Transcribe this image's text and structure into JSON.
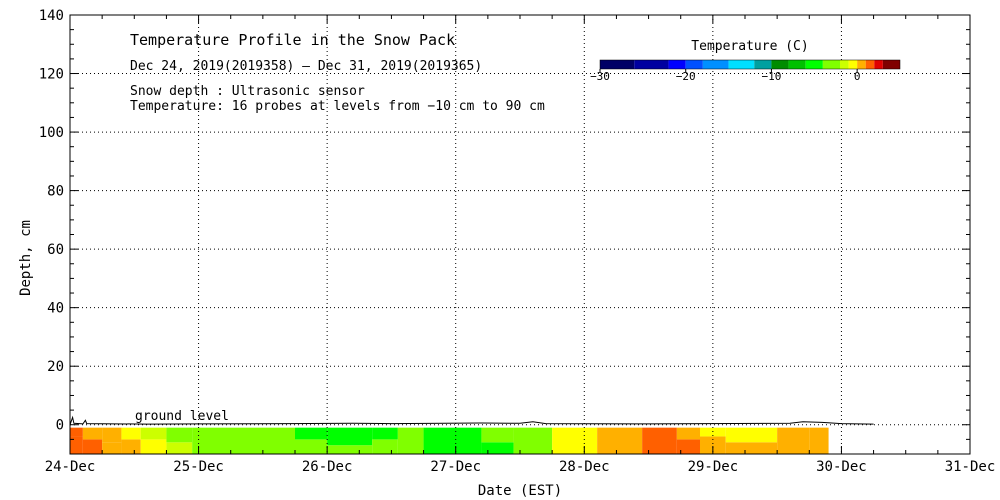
{
  "chart_data": {
    "type": "heatmap",
    "title": "Temperature Profile in the Snow Pack",
    "date_range": "Dec 24, 2019(2019358) – Dec 31, 2019(2019365)",
    "info_lines": [
      "Snow depth : Ultrasonic sensor",
      "Temperature: 16 probes at levels from −10 cm to 90 cm"
    ],
    "xlabel": "Date (EST)",
    "ylabel": "Depth, cm",
    "x_ticks": [
      "24-Dec",
      "25-Dec",
      "26-Dec",
      "27-Dec",
      "28-Dec",
      "29-Dec",
      "30-Dec",
      "31-Dec"
    ],
    "y_ticks": [
      0,
      20,
      40,
      60,
      80,
      100,
      120,
      140
    ],
    "xlim_days": [
      0,
      7
    ],
    "ylim": [
      -10,
      140
    ],
    "grid": true,
    "annotation": "ground level",
    "legend": {
      "title": "Temperature (C)",
      "placement": "top-right",
      "tick_labels": [
        "−30",
        "−20",
        "−10",
        "0"
      ],
      "tick_values": [
        -30,
        -20,
        -10,
        0
      ],
      "range": [
        -30,
        5
      ],
      "bands": [
        {
          "from": -30,
          "to": -26,
          "color": "#000066"
        },
        {
          "from": -26,
          "to": -22,
          "color": "#0000a0"
        },
        {
          "from": -22,
          "to": -20,
          "color": "#0000ff"
        },
        {
          "from": -20,
          "to": -18,
          "color": "#0050ff"
        },
        {
          "from": -18,
          "to": -15,
          "color": "#0090ff"
        },
        {
          "from": -15,
          "to": -12,
          "color": "#00e0ff"
        },
        {
          "from": -12,
          "to": -10,
          "color": "#00a0a0"
        },
        {
          "from": -10,
          "to": -8,
          "color": "#008c00"
        },
        {
          "from": -8,
          "to": -6,
          "color": "#00c000"
        },
        {
          "from": -6,
          "to": -4,
          "color": "#00ff00"
        },
        {
          "from": -4,
          "to": -2,
          "color": "#80ff00"
        },
        {
          "from": -2,
          "to": -1,
          "color": "#ccff00"
        },
        {
          "from": -1,
          "to": 0,
          "color": "#ffff00"
        },
        {
          "from": 0,
          "to": 1,
          "color": "#ffb000"
        },
        {
          "from": 1,
          "to": 2,
          "color": "#ff6000"
        },
        {
          "from": 2,
          "to": 3,
          "color": "#e00000"
        },
        {
          "from": 3,
          "to": 5,
          "color": "#800000"
        }
      ]
    },
    "heatmap_columns": [
      {
        "x0": 0.0,
        "x1": 0.1,
        "layers": [
          {
            "d0": -10,
            "d1": -4,
            "color": "#ff6000"
          },
          {
            "d0": -4,
            "d1": -1,
            "color": "#ff6000"
          }
        ]
      },
      {
        "x0": 0.1,
        "x1": 0.25,
        "layers": [
          {
            "d0": -10,
            "d1": -5,
            "color": "#ff6000"
          },
          {
            "d0": -5,
            "d1": -1,
            "color": "#ffb000"
          }
        ]
      },
      {
        "x0": 0.25,
        "x1": 0.4,
        "layers": [
          {
            "d0": -10,
            "d1": -6,
            "color": "#ffb000"
          },
          {
            "d0": -6,
            "d1": -1,
            "color": "#ffb000"
          }
        ]
      },
      {
        "x0": 0.4,
        "x1": 0.55,
        "layers": [
          {
            "d0": -10,
            "d1": -5,
            "color": "#ffb000"
          },
          {
            "d0": -5,
            "d1": -1,
            "color": "#ffff00"
          }
        ]
      },
      {
        "x0": 0.55,
        "x1": 0.75,
        "layers": [
          {
            "d0": -10,
            "d1": -5,
            "color": "#ffff00"
          },
          {
            "d0": -5,
            "d1": -1,
            "color": "#ccff00"
          }
        ]
      },
      {
        "x0": 0.75,
        "x1": 0.95,
        "layers": [
          {
            "d0": -10,
            "d1": -6,
            "color": "#ccff00"
          },
          {
            "d0": -6,
            "d1": -1,
            "color": "#80ff00"
          }
        ]
      },
      {
        "x0": 0.95,
        "x1": 1.75,
        "layers": [
          {
            "d0": -10,
            "d1": -1,
            "color": "#80ff00"
          }
        ]
      },
      {
        "x0": 1.75,
        "x1": 2.0,
        "layers": [
          {
            "d0": -10,
            "d1": -5,
            "color": "#80ff00"
          },
          {
            "d0": -5,
            "d1": -1,
            "color": "#00ff00"
          }
        ]
      },
      {
        "x0": 2.0,
        "x1": 2.35,
        "layers": [
          {
            "d0": -10,
            "d1": -7,
            "color": "#80ff00"
          },
          {
            "d0": -7,
            "d1": -1,
            "color": "#00ff00"
          }
        ]
      },
      {
        "x0": 2.35,
        "x1": 2.55,
        "layers": [
          {
            "d0": -10,
            "d1": -5,
            "color": "#80ff00"
          },
          {
            "d0": -5,
            "d1": -1,
            "color": "#00ff00"
          }
        ]
      },
      {
        "x0": 2.55,
        "x1": 2.75,
        "layers": [
          {
            "d0": -10,
            "d1": -1,
            "color": "#80ff00"
          }
        ]
      },
      {
        "x0": 2.75,
        "x1": 3.2,
        "layers": [
          {
            "d0": -10,
            "d1": -1,
            "color": "#00ff00"
          }
        ]
      },
      {
        "x0": 3.2,
        "x1": 3.45,
        "layers": [
          {
            "d0": -10,
            "d1": -6,
            "color": "#00ff00"
          },
          {
            "d0": -6,
            "d1": -1,
            "color": "#80ff00"
          }
        ]
      },
      {
        "x0": 3.45,
        "x1": 3.75,
        "layers": [
          {
            "d0": -10,
            "d1": -1,
            "color": "#80ff00"
          }
        ]
      },
      {
        "x0": 3.75,
        "x1": 4.1,
        "layers": [
          {
            "d0": -10,
            "d1": -1,
            "color": "#ffff00"
          }
        ]
      },
      {
        "x0": 4.1,
        "x1": 4.45,
        "layers": [
          {
            "d0": -10,
            "d1": -1,
            "color": "#ffb000"
          }
        ]
      },
      {
        "x0": 4.45,
        "x1": 4.72,
        "layers": [
          {
            "d0": -10,
            "d1": -1,
            "color": "#ff6000"
          }
        ]
      },
      {
        "x0": 4.72,
        "x1": 4.9,
        "layers": [
          {
            "d0": -10,
            "d1": -5,
            "color": "#ff6000"
          },
          {
            "d0": -5,
            "d1": -1,
            "color": "#ffb000"
          }
        ]
      },
      {
        "x0": 4.9,
        "x1": 5.1,
        "layers": [
          {
            "d0": -10,
            "d1": -4,
            "color": "#ffb000"
          },
          {
            "d0": -4,
            "d1": -1,
            "color": "#ffff00"
          }
        ]
      },
      {
        "x0": 5.1,
        "x1": 5.5,
        "layers": [
          {
            "d0": -10,
            "d1": -6,
            "color": "#ffb000"
          },
          {
            "d0": -6,
            "d1": -1,
            "color": "#ffff00"
          }
        ]
      },
      {
        "x0": 5.5,
        "x1": 5.75,
        "layers": [
          {
            "d0": -10,
            "d1": -1,
            "color": "#ffb000"
          }
        ]
      },
      {
        "x0": 5.75,
        "x1": 5.9,
        "layers": [
          {
            "d0": -10,
            "d1": -1,
            "color": "#ffb000"
          }
        ]
      }
    ],
    "snow_depth_trace": [
      [
        0.0,
        0.0
      ],
      [
        0.02,
        2.5
      ],
      [
        0.03,
        0.5
      ],
      [
        0.1,
        0.3
      ],
      [
        0.12,
        1.5
      ],
      [
        0.13,
        0.4
      ],
      [
        0.6,
        0.2
      ],
      [
        1.0,
        0.3
      ],
      [
        1.7,
        0.4
      ],
      [
        2.2,
        0.5
      ],
      [
        2.5,
        0.4
      ],
      [
        3.2,
        0.6
      ],
      [
        3.5,
        0.5
      ],
      [
        3.6,
        1.0
      ],
      [
        3.7,
        0.4
      ],
      [
        4.5,
        0.3
      ],
      [
        5.6,
        0.5
      ],
      [
        5.7,
        1.0
      ],
      [
        5.85,
        0.8
      ],
      [
        6.0,
        0.4
      ],
      [
        6.25,
        0.2
      ]
    ]
  }
}
